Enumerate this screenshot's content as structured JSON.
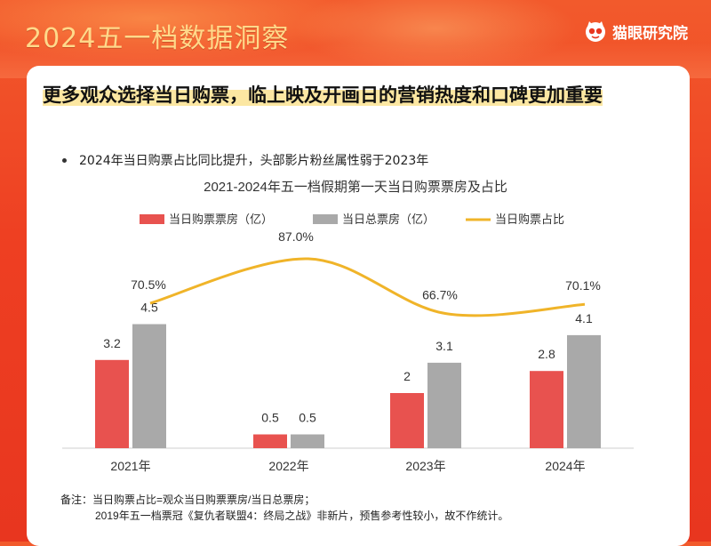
{
  "header": {
    "title": "2024五一档数据洞察",
    "brand": "猫眼研究院"
  },
  "headline": "更多观众选择当日购票，临上映及开画日的营销热度和口碑更加重要",
  "bullet": "2024年当日购票占比同比提升，头部影片粉丝属性弱于2023年",
  "chart_data": {
    "type": "bar",
    "title": "2021-2024年五一档假期第一天当日购票票房及占比",
    "categories": [
      "2021年",
      "2022年",
      "2023年",
      "2024年"
    ],
    "series": [
      {
        "name": "当日购票票房（亿）",
        "type": "bar",
        "color": "#e8524f",
        "values": [
          3.2,
          0.5,
          2,
          2.8
        ],
        "labels": [
          "3.2",
          "0.5",
          "2",
          "2.8"
        ]
      },
      {
        "name": "当日总票房（亿）",
        "type": "bar",
        "color": "#a9a9a9",
        "values": [
          4.5,
          0.5,
          3.1,
          4.1
        ],
        "labels": [
          "4.5",
          "0.5",
          "3.1",
          "4.1"
        ]
      },
      {
        "name": "当日购票占比",
        "type": "line",
        "color": "#f0b429",
        "values": [
          70.5,
          87.0,
          66.7,
          70.1
        ],
        "labels": [
          "70.5%",
          "87.0%",
          "66.7%",
          "70.1%"
        ]
      }
    ],
    "legend_position": "top",
    "grid": false
  },
  "notes": {
    "line1": "备注：当日购票占比=观众当日购票票房/当日总票房；",
    "line2": "2019年五一档票冠《复仇者联盟4：终局之战》非新片，预售参考性较小，故不作统计。"
  }
}
